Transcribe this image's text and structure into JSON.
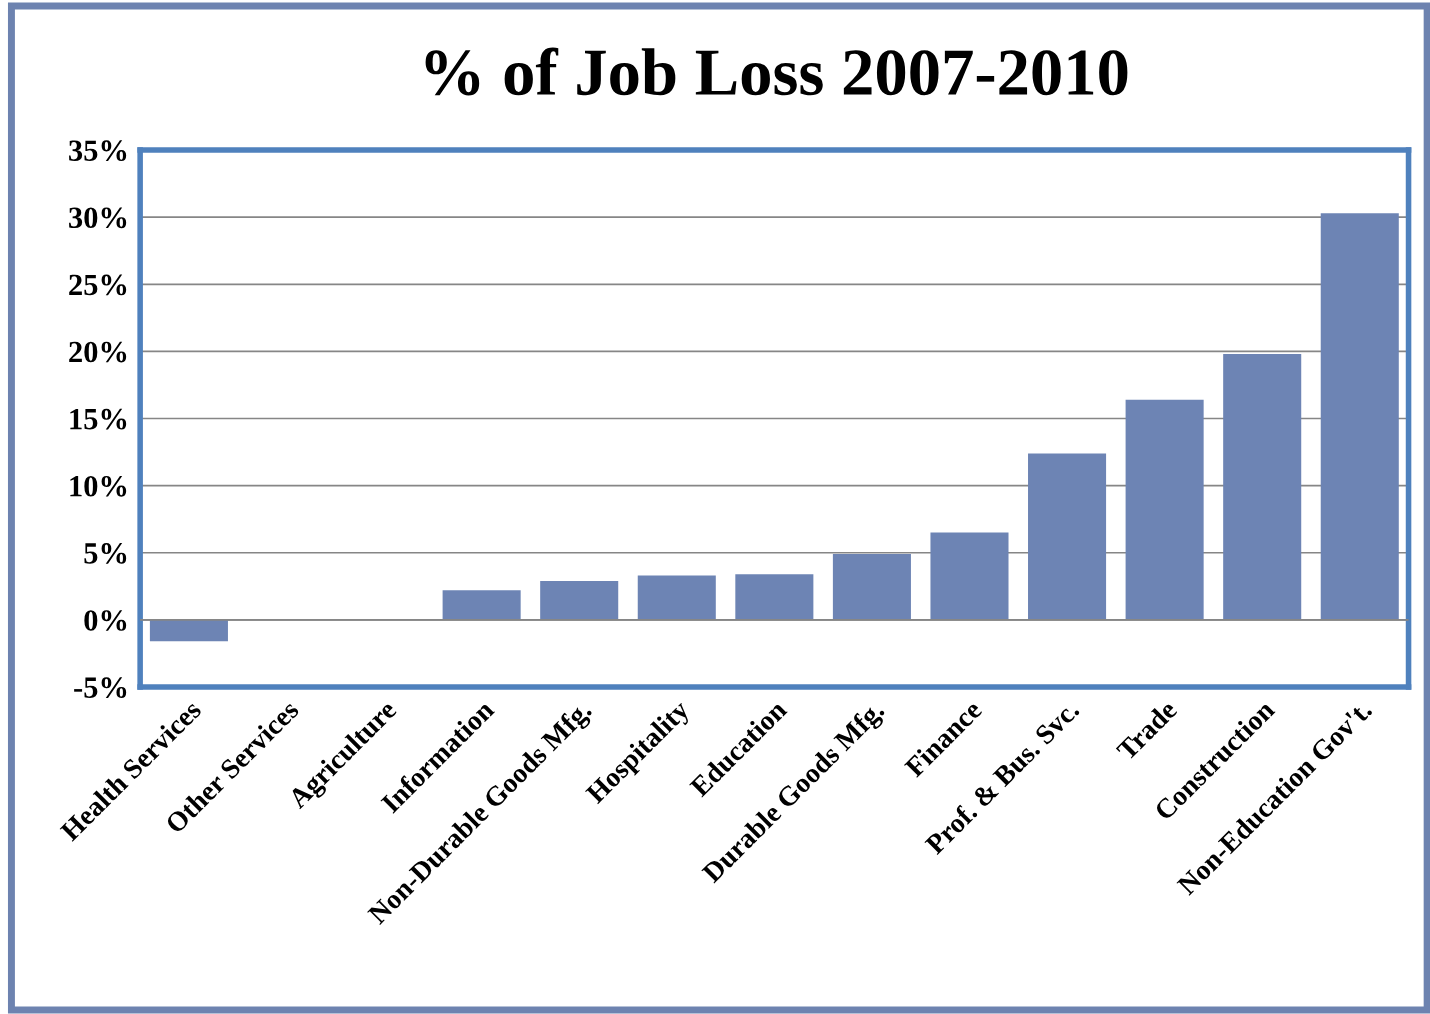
{
  "chart_data": {
    "type": "bar",
    "title": "% of Job Loss 2007-2010",
    "categories": [
      "Health Services",
      "Other Services",
      "Agriculture",
      "Information",
      "Non-Durable Goods Mfg.",
      "Hospitality",
      "Education",
      "Durable Goods Mfg.",
      "Finance",
      "Prof. & Bus. Svc.",
      "Trade",
      "Construction",
      "Non-Education Gov't."
    ],
    "values": [
      -1.6,
      0,
      0,
      2.2,
      2.9,
      3.3,
      3.4,
      4.9,
      6.5,
      12.4,
      16.4,
      19.8,
      30.3
    ],
    "color": "#6d84b4",
    "ylim": [
      -5,
      35
    ],
    "yticks": [
      {
        "value": -5,
        "label": "-5%"
      },
      {
        "value": 0,
        "label": "0%"
      },
      {
        "value": 5,
        "label": "5%"
      },
      {
        "value": 10,
        "label": "10%"
      },
      {
        "value": 15,
        "label": "15%"
      },
      {
        "value": 20,
        "label": "20%"
      },
      {
        "value": 25,
        "label": "25%"
      },
      {
        "value": 30,
        "label": "30%"
      },
      {
        "value": 35,
        "label": "35%"
      }
    ],
    "grid": "y"
  }
}
